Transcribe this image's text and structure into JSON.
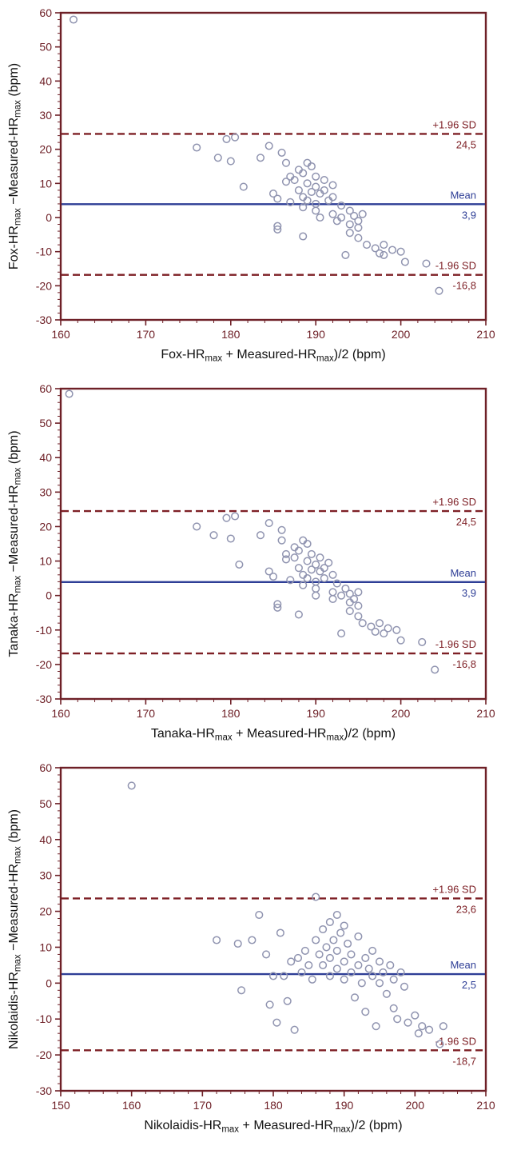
{
  "figure": {
    "description_labels": {
      "mean": "Mean",
      "upper_sd": "+1.96 SD",
      "lower_sd": "-1.96 SD"
    }
  },
  "colors": {
    "axis": "#6e2027",
    "tick_text": "#6e2027",
    "mean_line": "#2e3e96",
    "loa_line": "#7e2026",
    "point_stroke": "#9094b0",
    "label_text": "#111111",
    "background": "#ffffff"
  },
  "chart_data": [
    {
      "type": "scatter",
      "title": "",
      "x_label": "Fox-HR~max~ + Measured-HR~max~)/2 (bpm)",
      "y_label": "Fox-HR~max~ −Measured-HR~max~ (bpm)",
      "xlim": [
        160,
        210
      ],
      "ylim": [
        -30,
        60
      ],
      "x_ticks": [
        160,
        170,
        180,
        190,
        200,
        210
      ],
      "y_ticks": [
        -30,
        -20,
        -10,
        0,
        10,
        20,
        30,
        40,
        50,
        60
      ],
      "grid": false,
      "mean": {
        "value": 3.9,
        "label": "Mean",
        "value_label": "3,9"
      },
      "upper_loa": {
        "value": 24.5,
        "label": "+1.96 SD",
        "value_label": "24,5"
      },
      "lower_loa": {
        "value": -16.8,
        "label": "-1.96 SD",
        "value_label": "-16,8"
      },
      "points": [
        [
          161.5,
          58
        ],
        [
          176,
          20.5
        ],
        [
          178.5,
          17.5
        ],
        [
          179.5,
          23
        ],
        [
          180.5,
          23.5
        ],
        [
          180,
          16.5
        ],
        [
          181.5,
          9
        ],
        [
          183.5,
          17.5
        ],
        [
          184.5,
          21
        ],
        [
          185,
          7
        ],
        [
          185.5,
          5.5
        ],
        [
          185.5,
          -2.5
        ],
        [
          185.5,
          -3.5
        ],
        [
          186,
          19
        ],
        [
          186.5,
          16
        ],
        [
          186.5,
          10.5
        ],
        [
          187,
          12
        ],
        [
          187,
          4.5
        ],
        [
          187.5,
          11
        ],
        [
          188,
          14
        ],
        [
          188,
          8
        ],
        [
          188.5,
          13
        ],
        [
          188.5,
          6
        ],
        [
          188.5,
          3
        ],
        [
          188.5,
          -5.5
        ],
        [
          189,
          16
        ],
        [
          189,
          10
        ],
        [
          189,
          5
        ],
        [
          189.5,
          15
        ],
        [
          189.5,
          7.5
        ],
        [
          190,
          12
        ],
        [
          190,
          9
        ],
        [
          190,
          4
        ],
        [
          190,
          2
        ],
        [
          190.5,
          7
        ],
        [
          190.5,
          0
        ],
        [
          191,
          11
        ],
        [
          191,
          8
        ],
        [
          191.5,
          5
        ],
        [
          192,
          9.5
        ],
        [
          192,
          6
        ],
        [
          192,
          1
        ],
        [
          192.5,
          -1
        ],
        [
          193,
          3.5
        ],
        [
          193,
          0
        ],
        [
          193.5,
          -11
        ],
        [
          194,
          2
        ],
        [
          194,
          -2
        ],
        [
          194,
          -4.5
        ],
        [
          194.5,
          0.5
        ],
        [
          195,
          -1
        ],
        [
          195,
          -3
        ],
        [
          195,
          -6
        ],
        [
          195.5,
          1
        ],
        [
          196,
          -8
        ],
        [
          197,
          -9
        ],
        [
          197.5,
          -10.5
        ],
        [
          198,
          -8
        ],
        [
          198,
          -11
        ],
        [
          199,
          -9.5
        ],
        [
          200,
          -10
        ],
        [
          200.5,
          -13
        ],
        [
          203,
          -13.5
        ],
        [
          204.5,
          -21.5
        ]
      ]
    },
    {
      "type": "scatter",
      "title": "",
      "x_label": "Tanaka-HR~max~ + Measured-HR~max~)/2 (bpm)",
      "y_label": "Tanaka-HR~max~ −Measured-HR~max~ (bpm)",
      "xlim": [
        160,
        210
      ],
      "ylim": [
        -30,
        60
      ],
      "x_ticks": [
        160,
        170,
        180,
        190,
        200,
        210
      ],
      "y_ticks": [
        -30,
        -20,
        -10,
        0,
        10,
        20,
        30,
        40,
        50,
        60
      ],
      "grid": false,
      "mean": {
        "value": 3.9,
        "label": "Mean",
        "value_label": "3,9"
      },
      "upper_loa": {
        "value": 24.5,
        "label": "+1.96 SD",
        "value_label": "24,5"
      },
      "lower_loa": {
        "value": -16.8,
        "label": "-1.96 SD",
        "value_label": "-16,8"
      },
      "points": [
        [
          161,
          58.5
        ],
        [
          176,
          20
        ],
        [
          178,
          17.5
        ],
        [
          179.5,
          22.5
        ],
        [
          180.5,
          23
        ],
        [
          180,
          16.5
        ],
        [
          181,
          9
        ],
        [
          183.5,
          17.5
        ],
        [
          184.5,
          21
        ],
        [
          184.5,
          7
        ],
        [
          185,
          5.5
        ],
        [
          185.5,
          -2.5
        ],
        [
          185.5,
          -3.5
        ],
        [
          186,
          19
        ],
        [
          186,
          16
        ],
        [
          186.5,
          10.5
        ],
        [
          186.5,
          12
        ],
        [
          187,
          4.5
        ],
        [
          187.5,
          11
        ],
        [
          187.5,
          14
        ],
        [
          188,
          8
        ],
        [
          188,
          13
        ],
        [
          188.5,
          6
        ],
        [
          188.5,
          3
        ],
        [
          188,
          -5.5
        ],
        [
          188.5,
          16
        ],
        [
          189,
          10
        ],
        [
          189,
          5
        ],
        [
          189,
          15
        ],
        [
          189.5,
          7.5
        ],
        [
          189.5,
          12
        ],
        [
          190,
          9
        ],
        [
          190,
          4
        ],
        [
          190,
          2
        ],
        [
          190.5,
          7
        ],
        [
          190,
          0
        ],
        [
          190.5,
          11
        ],
        [
          191,
          8
        ],
        [
          191,
          5
        ],
        [
          191.5,
          9.5
        ],
        [
          192,
          6
        ],
        [
          192,
          1
        ],
        [
          192,
          -1
        ],
        [
          192.5,
          3.5
        ],
        [
          193,
          0
        ],
        [
          193,
          -11
        ],
        [
          193.5,
          2
        ],
        [
          194,
          -2
        ],
        [
          194,
          -4.5
        ],
        [
          194,
          0.5
        ],
        [
          194.5,
          -1
        ],
        [
          195,
          -3
        ],
        [
          195,
          -6
        ],
        [
          195,
          1
        ],
        [
          195.5,
          -8
        ],
        [
          196.5,
          -9
        ],
        [
          197,
          -10.5
        ],
        [
          197.5,
          -8
        ],
        [
          198,
          -11
        ],
        [
          198.5,
          -9.5
        ],
        [
          199.5,
          -10
        ],
        [
          200,
          -13
        ],
        [
          202.5,
          -13.5
        ],
        [
          204,
          -21.5
        ]
      ]
    },
    {
      "type": "scatter",
      "title": "",
      "x_label": "Nikolaidis-HR~max~ + Measured-HR~max~)/2 (bpm)",
      "y_label": "Nikolaidis-HR~max~ −Measured-HR~max~ (bpm)",
      "xlim": [
        150,
        210
      ],
      "ylim": [
        -30,
        60
      ],
      "x_ticks": [
        150,
        160,
        170,
        180,
        190,
        200,
        210
      ],
      "y_ticks": [
        -30,
        -20,
        -10,
        0,
        10,
        20,
        30,
        40,
        50,
        60
      ],
      "grid": false,
      "mean": {
        "value": 2.5,
        "label": "Mean",
        "value_label": "2,5"
      },
      "upper_loa": {
        "value": 23.6,
        "label": "+1.96 SD",
        "value_label": "23,6"
      },
      "lower_loa": {
        "value": -18.7,
        "label": "-1.96 SD",
        "value_label": "-18,7"
      },
      "points": [
        [
          160,
          55
        ],
        [
          172,
          12
        ],
        [
          175,
          11
        ],
        [
          175.5,
          -2
        ],
        [
          177,
          12
        ],
        [
          178,
          19
        ],
        [
          179,
          8
        ],
        [
          179.5,
          -6
        ],
        [
          180,
          2
        ],
        [
          180.5,
          -11
        ],
        [
          181,
          14
        ],
        [
          181.5,
          2
        ],
        [
          182,
          -5
        ],
        [
          182.5,
          6
        ],
        [
          183,
          -13
        ],
        [
          183.5,
          7
        ],
        [
          184,
          3
        ],
        [
          184.5,
          9
        ],
        [
          185,
          5
        ],
        [
          185.5,
          1
        ],
        [
          186,
          24
        ],
        [
          186,
          12
        ],
        [
          186.5,
          8
        ],
        [
          187,
          15
        ],
        [
          187,
          5
        ],
        [
          187.5,
          10
        ],
        [
          188,
          17
        ],
        [
          188,
          7
        ],
        [
          188,
          2
        ],
        [
          188.5,
          12
        ],
        [
          189,
          19
        ],
        [
          189,
          9
        ],
        [
          189,
          4
        ],
        [
          189.5,
          14
        ],
        [
          190,
          16
        ],
        [
          190,
          6
        ],
        [
          190,
          1
        ],
        [
          190.5,
          11
        ],
        [
          191,
          8
        ],
        [
          191,
          3
        ],
        [
          191.5,
          -4
        ],
        [
          192,
          13
        ],
        [
          192,
          5
        ],
        [
          192.5,
          0
        ],
        [
          193,
          7
        ],
        [
          193,
          -8
        ],
        [
          193.5,
          4
        ],
        [
          194,
          9
        ],
        [
          194,
          2
        ],
        [
          194.5,
          -12
        ],
        [
          195,
          6
        ],
        [
          195,
          0
        ],
        [
          195.5,
          3
        ],
        [
          196,
          -3
        ],
        [
          196.5,
          5
        ],
        [
          197,
          1
        ],
        [
          197,
          -7
        ],
        [
          197.5,
          -10
        ],
        [
          198,
          3
        ],
        [
          198.5,
          -1
        ],
        [
          199,
          -11
        ],
        [
          200,
          -9
        ],
        [
          200.5,
          -14
        ],
        [
          201,
          -12
        ],
        [
          202,
          -13
        ],
        [
          203.5,
          -17
        ],
        [
          204,
          -12
        ]
      ]
    }
  ]
}
